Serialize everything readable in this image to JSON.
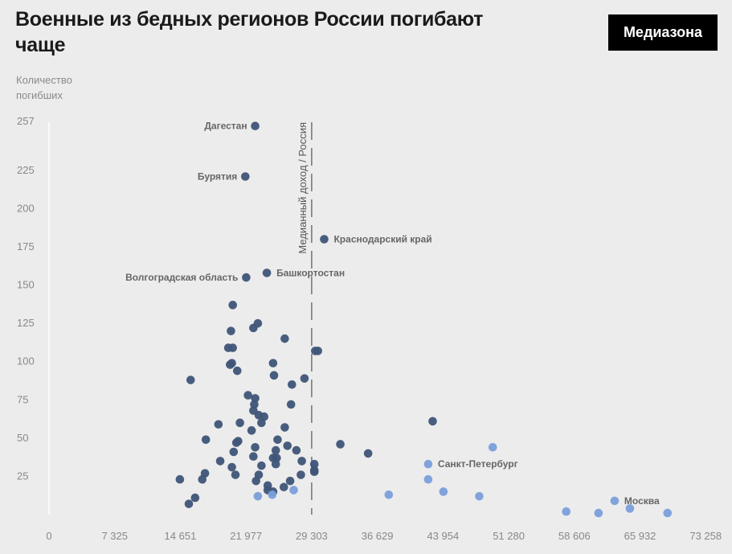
{
  "header": {
    "title": "Военные из бедных регионов России погибают чаще",
    "brand": "Медиазона"
  },
  "colors": {
    "dark": "#3f5578",
    "light": "#7b9fdb",
    "background": "#ececec"
  },
  "chart_data": {
    "type": "scatter",
    "ylabel": "Количество погибших",
    "xlim": [
      0,
      77000
    ],
    "ylim": [
      0,
      257
    ],
    "xticks": [
      0,
      7325,
      14651,
      21977,
      29303,
      36629,
      43954,
      51280,
      58606,
      65932,
      73258
    ],
    "xtick_labels": [
      "0",
      "7 325",
      "14 651",
      "21 977",
      "29 303",
      "36 629",
      "43 954",
      "51 280",
      "58 606",
      "65 932",
      "73 258"
    ],
    "yticks": [
      25,
      50,
      75,
      100,
      125,
      150,
      175,
      200,
      225,
      257
    ],
    "ytick_labels": [
      "25",
      "50",
      "75",
      "100",
      "125",
      "150",
      "175",
      "200",
      "225",
      "257"
    ],
    "median": {
      "x": 29303,
      "label": "Медианный доход / Россия"
    },
    "labeled_points": [
      {
        "label": "Дагестан",
        "x": 23000,
        "y": 254,
        "side": "left"
      },
      {
        "label": "Бурятия",
        "x": 21900,
        "y": 221,
        "side": "left"
      },
      {
        "label": "Краснодарский край",
        "x": 30700,
        "y": 180,
        "side": "right"
      },
      {
        "label": "Башкортостан",
        "x": 24300,
        "y": 158,
        "side": "right"
      },
      {
        "label": "Волгоградская область",
        "x": 22000,
        "y": 155,
        "side": "left"
      },
      {
        "label": "Санкт-Петербург",
        "x": 42300,
        "y": 33,
        "side": "right"
      },
      {
        "label": "Москва",
        "x": 63100,
        "y": 9,
        "side": "right"
      }
    ],
    "series": [
      {
        "color": "dark",
        "points": [
          [
            23000,
            254
          ],
          [
            21900,
            221
          ],
          [
            30700,
            180
          ],
          [
            24300,
            158
          ],
          [
            22000,
            155
          ],
          [
            20500,
            137
          ],
          [
            23300,
            125
          ],
          [
            20300,
            120
          ],
          [
            22800,
            122
          ],
          [
            26300,
            115
          ],
          [
            20000,
            109
          ],
          [
            20500,
            109
          ],
          [
            20200,
            98
          ],
          [
            20400,
            99
          ],
          [
            21000,
            94
          ],
          [
            25000,
            99
          ],
          [
            29700,
            107
          ],
          [
            30000,
            107
          ],
          [
            15800,
            88
          ],
          [
            25100,
            91
          ],
          [
            27100,
            85
          ],
          [
            28500,
            89
          ],
          [
            22200,
            78
          ],
          [
            23000,
            76
          ],
          [
            22900,
            72
          ],
          [
            27000,
            72
          ],
          [
            22800,
            68
          ],
          [
            23400,
            65
          ],
          [
            24000,
            64
          ],
          [
            18900,
            59
          ],
          [
            21300,
            60
          ],
          [
            23700,
            60
          ],
          [
            22600,
            55
          ],
          [
            26300,
            57
          ],
          [
            17500,
            49
          ],
          [
            21100,
            48
          ],
          [
            20900,
            47
          ],
          [
            25500,
            49
          ],
          [
            26600,
            45
          ],
          [
            23000,
            44
          ],
          [
            25300,
            42
          ],
          [
            27600,
            42
          ],
          [
            20600,
            41
          ],
          [
            22800,
            38
          ],
          [
            25000,
            37
          ],
          [
            25400,
            37
          ],
          [
            28200,
            35
          ],
          [
            19100,
            35
          ],
          [
            29600,
            33
          ],
          [
            25300,
            33
          ],
          [
            23700,
            32
          ],
          [
            20400,
            31
          ],
          [
            29600,
            29
          ],
          [
            17400,
            27
          ],
          [
            20800,
            26
          ],
          [
            23400,
            26
          ],
          [
            28100,
            26
          ],
          [
            17100,
            23
          ],
          [
            14600,
            23
          ],
          [
            23100,
            22
          ],
          [
            26900,
            22
          ],
          [
            24400,
            19
          ],
          [
            26200,
            18
          ],
          [
            24400,
            16
          ],
          [
            25000,
            15
          ],
          [
            32500,
            46
          ],
          [
            35600,
            40
          ],
          [
            42800,
            61
          ],
          [
            16300,
            11
          ],
          [
            15600,
            7
          ],
          [
            29600,
            28
          ]
        ]
      },
      {
        "color": "light",
        "points": [
          [
            23300,
            12
          ],
          [
            24900,
            13
          ],
          [
            27300,
            16
          ],
          [
            37900,
            13
          ],
          [
            42300,
            23
          ],
          [
            42300,
            33
          ],
          [
            44000,
            15
          ],
          [
            48000,
            12
          ],
          [
            49500,
            44
          ],
          [
            57700,
            2
          ],
          [
            61300,
            1
          ],
          [
            63100,
            9
          ],
          [
            64800,
            4
          ],
          [
            69000,
            1
          ]
        ]
      }
    ]
  }
}
